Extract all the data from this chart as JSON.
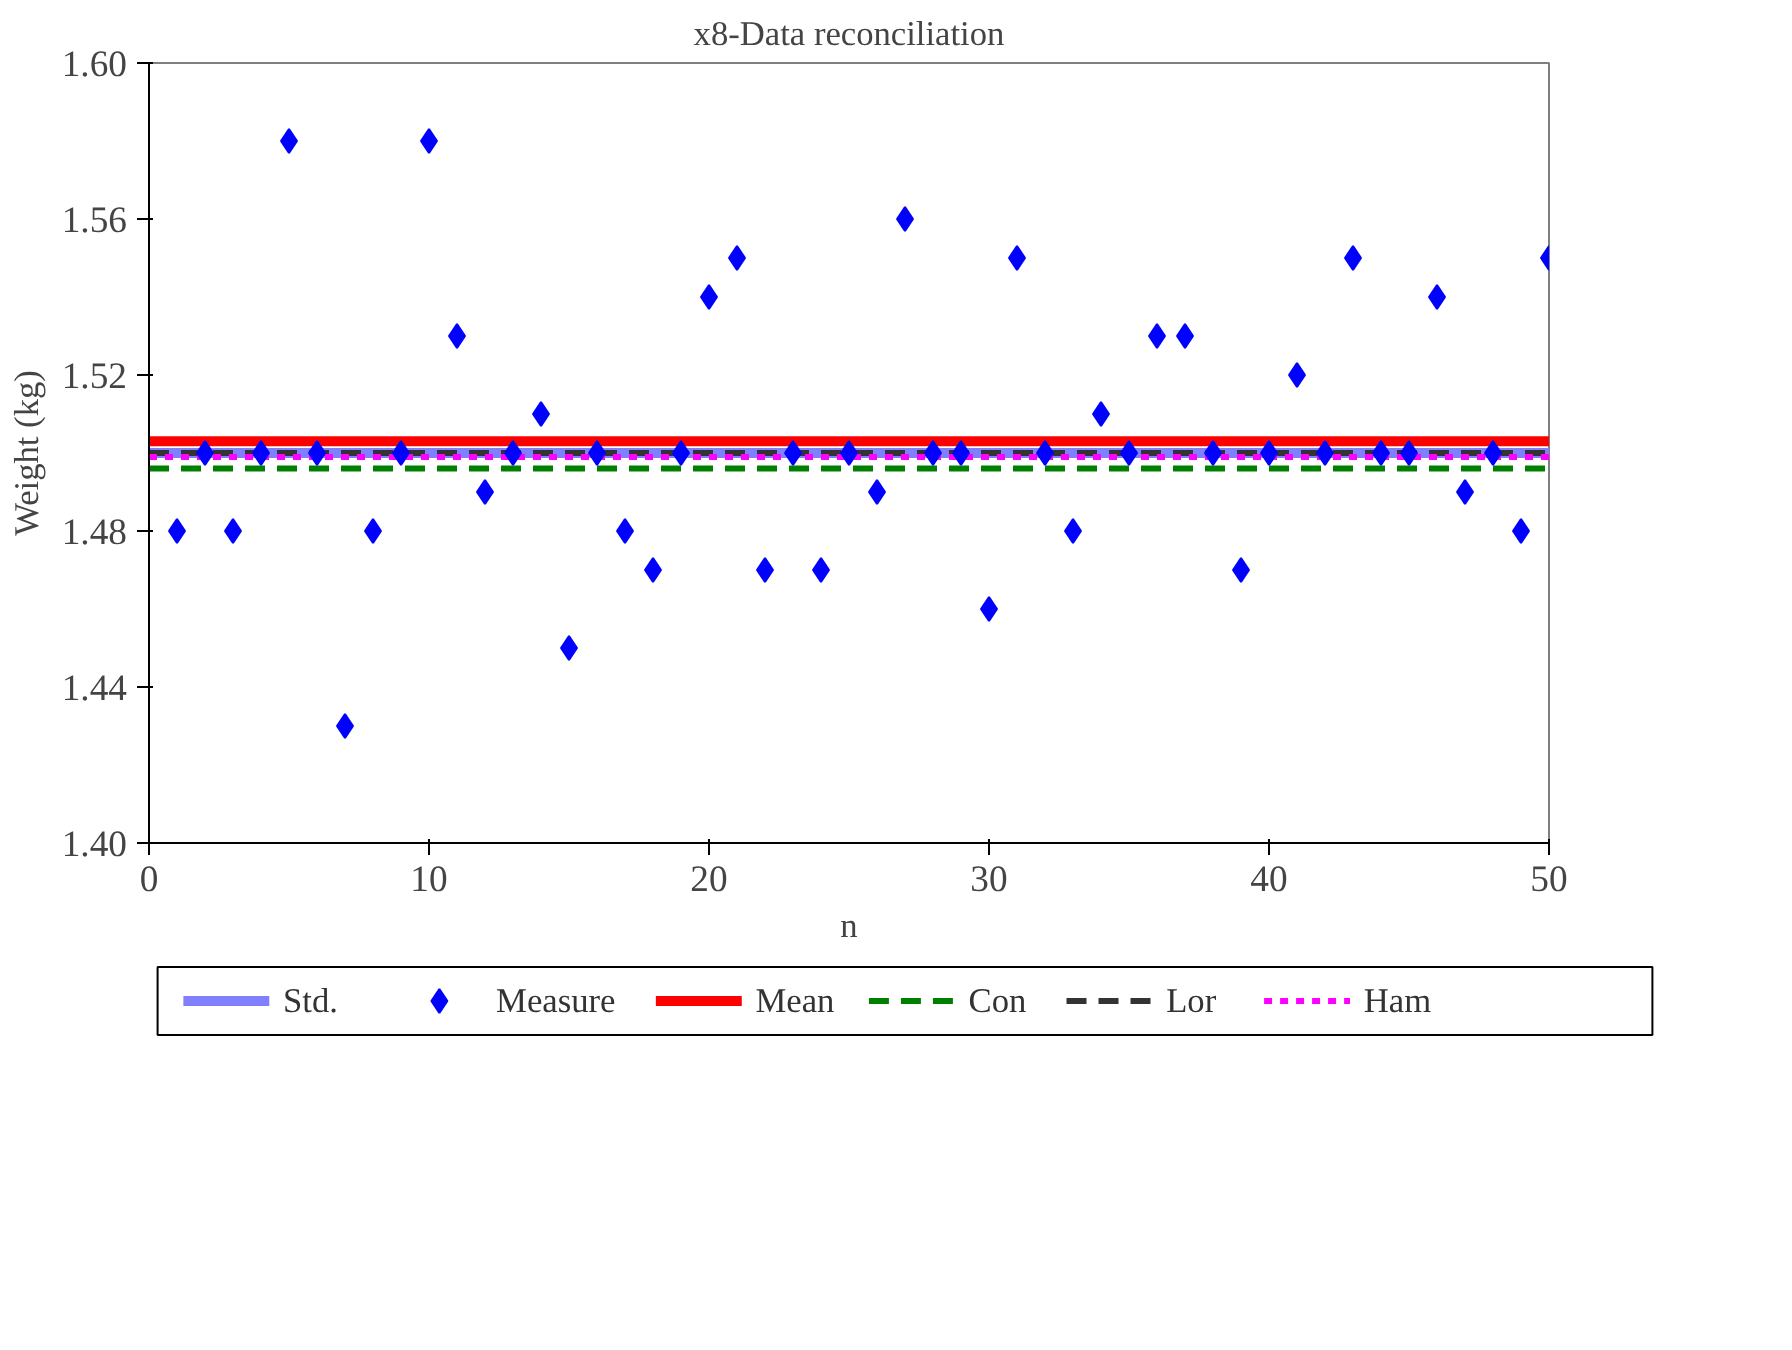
{
  "chart_data": {
    "type": "scatter",
    "title": "x8-Data reconciliation",
    "xlabel": "n",
    "ylabel": "Weight (kg)",
    "xlim": [
      0,
      50
    ],
    "xticks": [
      0,
      10,
      20,
      30,
      40,
      50
    ],
    "ylim": [
      1.4,
      1.6
    ],
    "yticks": [
      {
        "value": 1.4,
        "label": "1.40"
      },
      {
        "value": 1.44,
        "label": "1.44"
      },
      {
        "value": 1.48,
        "label": "1.48"
      },
      {
        "value": 1.52,
        "label": "1.52"
      },
      {
        "value": 1.56,
        "label": "1.56"
      },
      {
        "value": 1.6,
        "label": "1.60"
      }
    ],
    "grid": false,
    "legend": "bottom",
    "series": [
      {
        "name": "Std.",
        "type": "line",
        "color": "#8080ff",
        "line_style": "solid",
        "x": [
          0,
          50
        ],
        "values": [
          1.5,
          1.5
        ]
      },
      {
        "name": "Measure",
        "color": "#0000ff",
        "marker": "diamond",
        "x": [
          1,
          2,
          3,
          4,
          5,
          6,
          7,
          8,
          9,
          10,
          11,
          12,
          13,
          14,
          15,
          16,
          17,
          18,
          19,
          20,
          21,
          22,
          23,
          24,
          25,
          26,
          27,
          28,
          29,
          30,
          31,
          32,
          33,
          34,
          35,
          36,
          37,
          38,
          39,
          40,
          41,
          42,
          43,
          44,
          45,
          46,
          47,
          48,
          49,
          50
        ],
        "values": [
          1.48,
          1.5,
          1.48,
          1.5,
          1.58,
          1.5,
          1.43,
          1.48,
          1.5,
          1.58,
          1.53,
          1.49,
          1.5,
          1.51,
          1.45,
          1.5,
          1.48,
          1.47,
          1.5,
          1.54,
          1.55,
          1.47,
          1.5,
          1.47,
          1.5,
          1.49,
          1.56,
          1.5,
          1.5,
          1.46,
          1.55,
          1.5,
          1.48,
          1.51,
          1.5,
          1.53,
          1.53,
          1.5,
          1.47,
          1.5,
          1.52,
          1.5,
          1.55,
          1.5,
          1.5,
          1.54,
          1.49,
          1.5,
          1.48,
          1.55
        ]
      },
      {
        "name": "Mean",
        "type": "line",
        "color": "#ff0000",
        "line_style": "solid",
        "x": [
          0,
          50
        ],
        "values": [
          1.503,
          1.503
        ]
      },
      {
        "name": "Con",
        "type": "line",
        "color": "#008000",
        "line_style": "dashed",
        "x": [
          0,
          50
        ],
        "values": [
          1.496,
          1.496
        ]
      },
      {
        "name": "Lor",
        "type": "line",
        "color": "#333333",
        "line_style": "dashed",
        "x": [
          0,
          50
        ],
        "values": [
          1.5,
          1.5
        ]
      },
      {
        "name": "Ham",
        "type": "line",
        "color": "#ff00ff",
        "line_style": "dotted",
        "x": [
          0,
          50
        ],
        "values": [
          1.499,
          1.499
        ]
      }
    ]
  }
}
